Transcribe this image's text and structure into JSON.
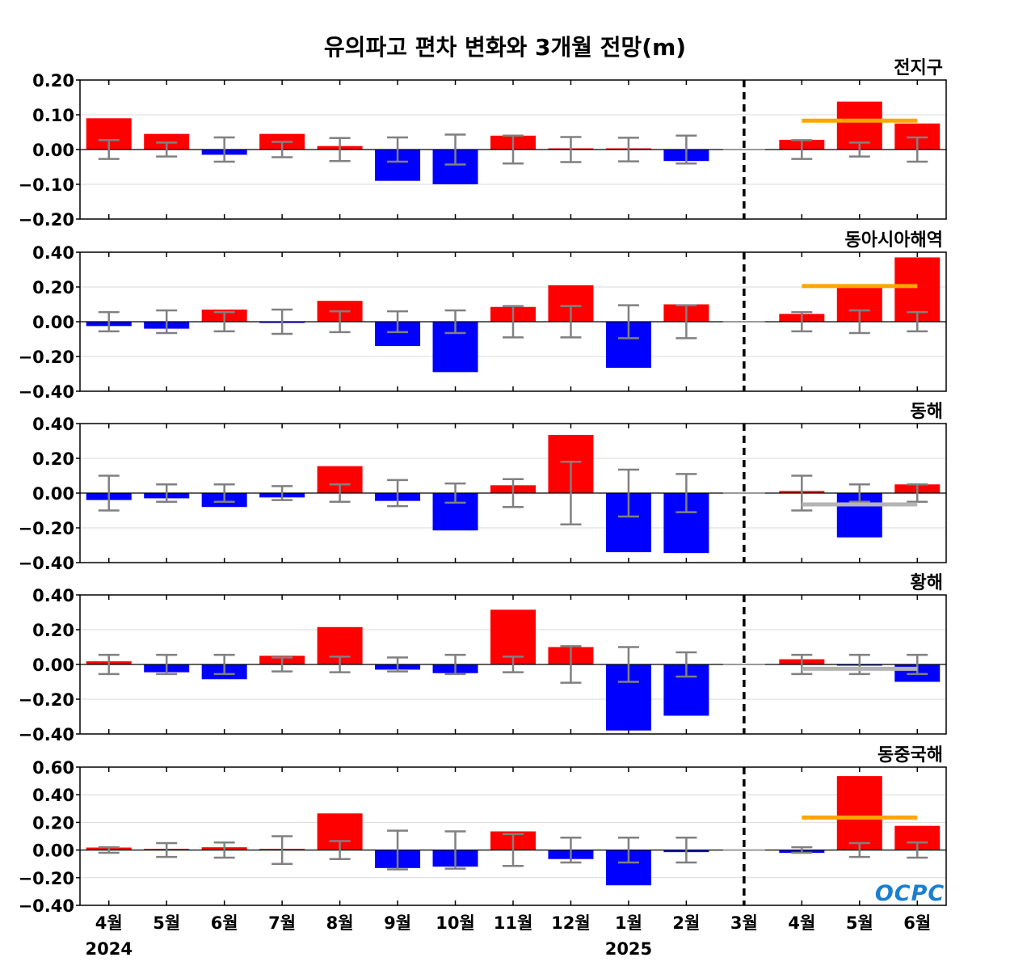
{
  "chart_data": {
    "type": "bar",
    "title": "유의파고 편차 변화와 3개월 전망(m)",
    "categories": [
      "4월",
      "5월",
      "6월",
      "7월",
      "8월",
      "9월",
      "10월",
      "11월",
      "12월",
      "1월",
      "2월",
      "3월",
      "4월",
      "5월",
      "6월"
    ],
    "year_labels": [
      {
        "index": 0,
        "label": "2024"
      },
      {
        "index": 9,
        "label": "2025"
      }
    ],
    "forecast_divider_after_index": 11,
    "logo_text": "OCPC",
    "colors": {
      "positive": "#ff0000",
      "negative": "#0000ff",
      "error_bar": "#808080",
      "forecast_positive": "#ffa500",
      "forecast_negative": "#b4b4b4"
    },
    "panels": [
      {
        "name": "전지구",
        "ylim": [
          -0.2,
          0.2
        ],
        "yticks": [
          "0.20",
          "0.10",
          "0.00",
          "−0.10",
          "−0.20"
        ],
        "ytick_values": [
          0.2,
          0.1,
          0.0,
          -0.1,
          -0.2
        ],
        "values": [
          0.09,
          0.045,
          -0.015,
          0.045,
          0.01,
          -0.09,
          -0.1,
          0.04,
          0.0,
          0.0,
          -0.033,
          null,
          0.028,
          0.138,
          0.075
        ],
        "errors": [
          0.027,
          0.02,
          0.035,
          0.022,
          0.033,
          0.035,
          0.043,
          0.04,
          0.036,
          0.034,
          0.04,
          null,
          0.027,
          0.02,
          0.035
        ],
        "forecast_line": {
          "value": 0.083,
          "from_index": 12,
          "to_index": 14,
          "color": "#ffa500"
        }
      },
      {
        "name": "동아시아해역",
        "ylim": [
          -0.4,
          0.4
        ],
        "yticks": [
          "0.40",
          "0.20",
          "0.00",
          "−0.20",
          "−0.40"
        ],
        "ytick_values": [
          0.4,
          0.2,
          0.0,
          -0.2,
          -0.4
        ],
        "values": [
          -0.025,
          -0.04,
          0.07,
          -0.005,
          0.12,
          -0.14,
          -0.29,
          0.085,
          0.21,
          -0.265,
          0.1,
          null,
          0.045,
          0.21,
          0.37
        ],
        "errors": [
          0.055,
          0.065,
          0.055,
          0.07,
          0.06,
          0.06,
          0.065,
          0.09,
          0.09,
          0.095,
          0.095,
          null,
          0.055,
          0.065,
          0.055
        ],
        "forecast_line": {
          "value": 0.205,
          "from_index": 12,
          "to_index": 14,
          "color": "#ffa500"
        }
      },
      {
        "name": "동해",
        "ylim": [
          -0.4,
          0.4
        ],
        "yticks": [
          "0.40",
          "0.20",
          "0.00",
          "−0.20",
          "−0.40"
        ],
        "ytick_values": [
          0.4,
          0.2,
          0.0,
          -0.2,
          -0.4
        ],
        "values": [
          -0.04,
          -0.03,
          -0.08,
          -0.025,
          0.155,
          -0.045,
          -0.215,
          0.045,
          0.335,
          -0.34,
          -0.345,
          null,
          0.012,
          -0.255,
          0.05
        ],
        "errors": [
          0.1,
          0.05,
          0.05,
          0.04,
          0.05,
          0.075,
          0.055,
          0.08,
          0.18,
          0.135,
          0.11,
          null,
          0.1,
          0.05,
          0.05
        ],
        "forecast_line": {
          "value": -0.065,
          "from_index": 12,
          "to_index": 14,
          "color": "#b4b4b4"
        }
      },
      {
        "name": "황해",
        "ylim": [
          -0.4,
          0.4
        ],
        "yticks": [
          "0.40",
          "0.20",
          "0.00",
          "−0.20",
          "−0.40"
        ],
        "ytick_values": [
          0.4,
          0.2,
          0.0,
          -0.2,
          -0.4
        ],
        "values": [
          0.018,
          -0.045,
          -0.085,
          0.05,
          0.215,
          -0.03,
          -0.05,
          0.315,
          0.1,
          -0.38,
          -0.295,
          null,
          0.03,
          -0.005,
          -0.1
        ],
        "errors": [
          0.055,
          0.055,
          0.055,
          0.04,
          0.045,
          0.04,
          0.055,
          0.045,
          0.105,
          0.1,
          0.07,
          null,
          0.055,
          0.055,
          0.055
        ],
        "forecast_line": {
          "value": -0.025,
          "from_index": 12,
          "to_index": 14,
          "color": "#b4b4b4"
        }
      },
      {
        "name": "동중국해",
        "ylim": [
          -0.4,
          0.6
        ],
        "yticks": [
          "0.60",
          "0.40",
          "0.20",
          "0.00",
          "−0.20",
          "−0.40"
        ],
        "ytick_values": [
          0.6,
          0.4,
          0.2,
          0.0,
          -0.2,
          -0.4
        ],
        "values": [
          0.018,
          0.0,
          0.02,
          0.0,
          0.265,
          -0.13,
          -0.12,
          0.135,
          -0.065,
          -0.255,
          -0.015,
          null,
          -0.02,
          0.535,
          0.175
        ],
        "errors": [
          0.02,
          0.05,
          0.055,
          0.1,
          0.065,
          0.14,
          0.135,
          0.115,
          0.09,
          0.09,
          0.09,
          null,
          0.02,
          0.05,
          0.055
        ],
        "forecast_line": {
          "value": 0.235,
          "from_index": 12,
          "to_index": 14,
          "color": "#ffa500"
        }
      }
    ]
  }
}
